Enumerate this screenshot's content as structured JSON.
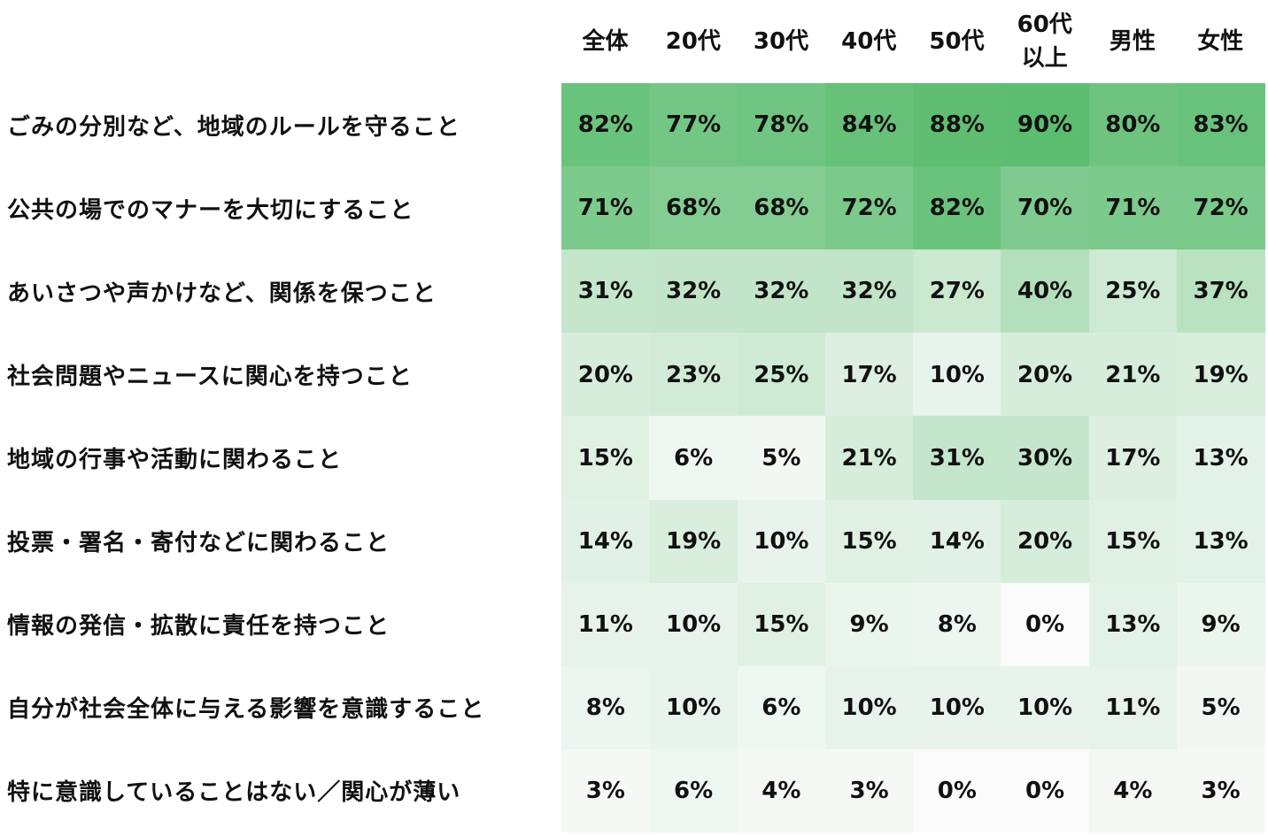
{
  "chart_data": {
    "type": "heatmap",
    "columns": [
      "全体",
      "20代",
      "30代",
      "40代",
      "50代",
      "60代\n以上",
      "男性",
      "女性"
    ],
    "rows": [
      "ごみの分別など、地域のルールを守ること",
      "公共の場でのマナーを大切にすること",
      "あいさつや声かけなど、関係を保つこと",
      "社会問題やニュースに関心を持つこと",
      "地域の行事や活動に関わること",
      "投票・署名・寄付などに関わること",
      "情報の発信・拡散に責任を持つこと",
      "自分が社会全体に与える影響を意識すること",
      "特に意識していることはない／関心が薄い"
    ],
    "values": [
      [
        82,
        77,
        78,
        84,
        88,
        90,
        80,
        83
      ],
      [
        71,
        68,
        68,
        72,
        82,
        70,
        71,
        72
      ],
      [
        31,
        32,
        32,
        32,
        27,
        40,
        25,
        37
      ],
      [
        20,
        23,
        25,
        17,
        10,
        20,
        21,
        19
      ],
      [
        15,
        6,
        5,
        21,
        31,
        30,
        17,
        13
      ],
      [
        14,
        19,
        10,
        15,
        14,
        20,
        15,
        13
      ],
      [
        11,
        10,
        15,
        9,
        8,
        0,
        13,
        9
      ],
      [
        8,
        10,
        6,
        10,
        10,
        10,
        11,
        5
      ],
      [
        3,
        6,
        4,
        3,
        0,
        0,
        4,
        3
      ]
    ],
    "value_suffix": "%",
    "color_scale": {
      "min_color": "#fafbfa",
      "max_color": "#5cbd70",
      "min": 0,
      "max": 90
    }
  }
}
